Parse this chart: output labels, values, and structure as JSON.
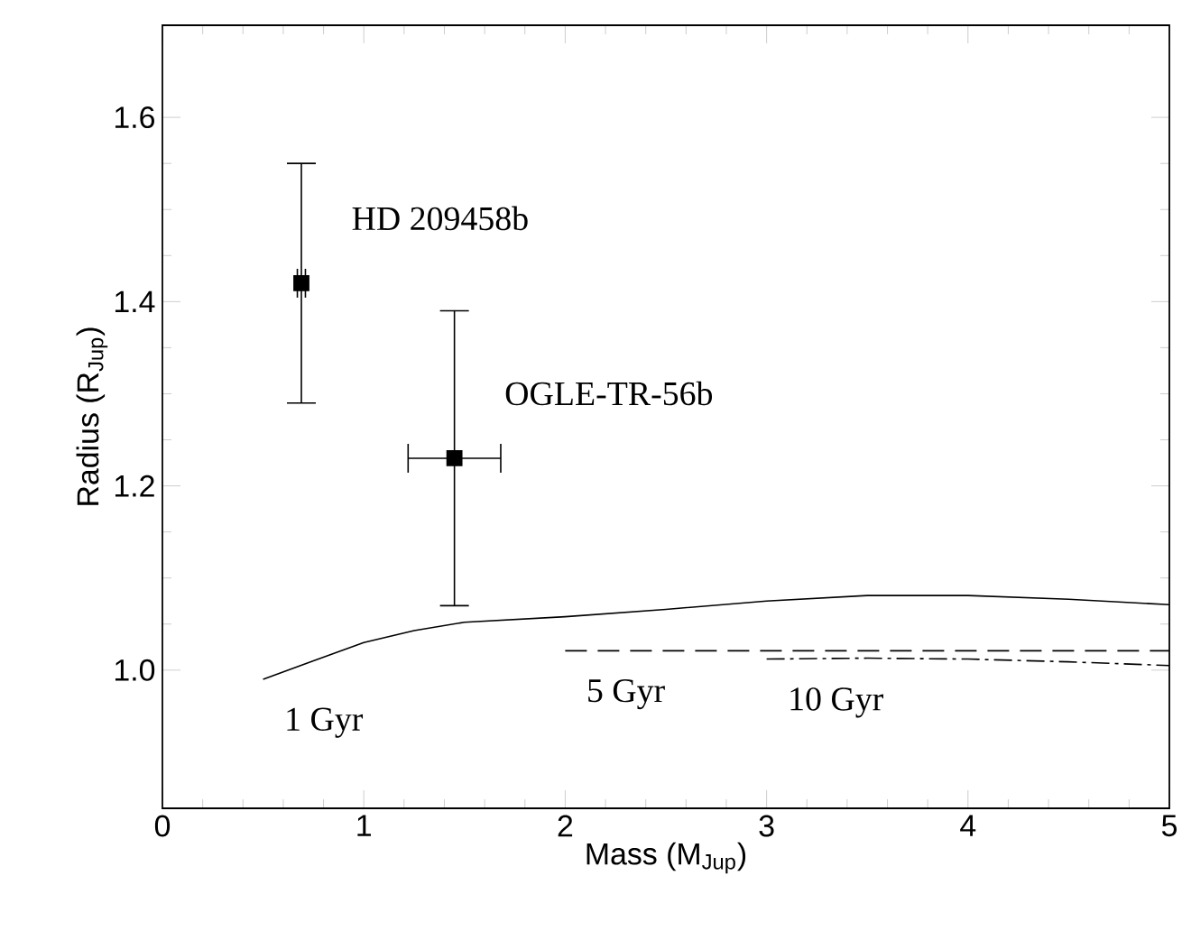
{
  "chart_data": {
    "type": "line",
    "xlabel": "Mass (M$_{Jup}$)",
    "ylabel": "Radius (R$_{Jup}$)",
    "xlim": [
      0,
      5
    ],
    "ylim": [
      0.85,
      1.7
    ],
    "xticks": [
      0,
      1,
      2,
      3,
      4,
      5
    ],
    "yticks": [
      {
        "value": 1.0,
        "label": "1.0"
      },
      {
        "value": 1.2,
        "label": "1.2"
      },
      {
        "value": 1.4,
        "label": "1.4"
      },
      {
        "value": 1.6,
        "label": "1.6"
      }
    ],
    "series": [
      {
        "type": "scatter",
        "name": "HD 209458b",
        "color": "#000000",
        "marker": "square",
        "x": [
          0.69
        ],
        "values": [
          1.42
        ],
        "errors": [
          [
            1.29,
            1.55
          ]
        ],
        "xerrors": [
          [
            0.67,
            0.71
          ]
        ]
      },
      {
        "type": "scatter",
        "name": "OGLE-TR-56b",
        "color": "#000000",
        "marker": "square",
        "x": [
          1.45
        ],
        "values": [
          1.23
        ],
        "errors": [
          [
            1.07,
            1.39
          ]
        ],
        "xerrors": [
          [
            1.22,
            1.68
          ]
        ]
      },
      {
        "name": "1 Gyr",
        "color": "#000000",
        "line_style": "solid",
        "x": [
          0.5,
          0.75,
          1.0,
          1.25,
          1.5,
          2.0,
          2.5,
          3.0,
          3.5,
          4.0,
          4.5,
          5.0
        ],
        "values": [
          0.99,
          1.01,
          1.03,
          1.043,
          1.052,
          1.058,
          1.066,
          1.075,
          1.081,
          1.081,
          1.077,
          1.071
        ]
      },
      {
        "name": "5 Gyr",
        "color": "#000000",
        "line_style": "dashed",
        "x": [
          2.0,
          5.0
        ],
        "values": [
          1.021,
          1.021
        ]
      },
      {
        "name": "10 Gyr",
        "color": "#000000",
        "line_style": "dashdot",
        "x": [
          3.0,
          3.5,
          4.0,
          4.5,
          5.0
        ],
        "values": [
          1.012,
          1.013,
          1.012,
          1.009,
          1.005
        ]
      }
    ]
  }
}
